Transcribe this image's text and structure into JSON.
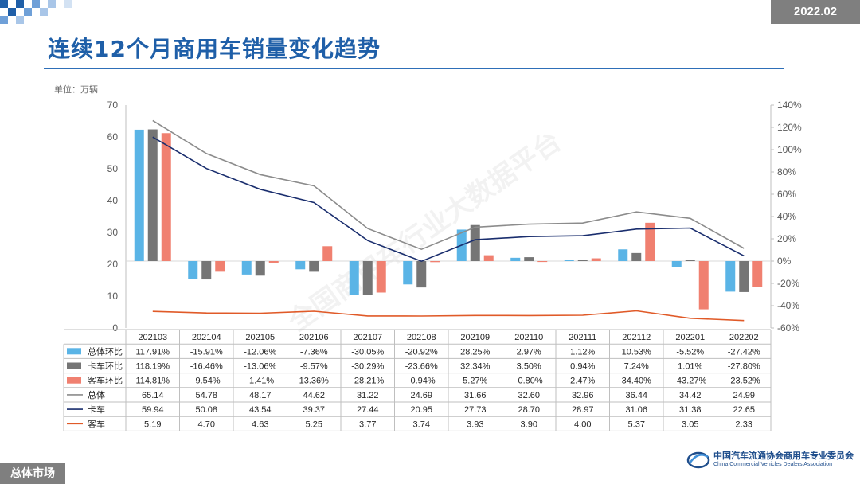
{
  "header": {
    "date": "2022.02",
    "title": "连续12个月商用车销量变化趋势",
    "unit": "单位：万辆"
  },
  "footer": {
    "section": "总体市场",
    "org_cn": "中国汽车流通协会商用车专业委员会",
    "org_en": "China Commercial Vehicles Dealers Association"
  },
  "watermark": "全国商用车行业大数据平台",
  "colors": {
    "total_bar": "#5ab4e6",
    "truck_bar": "#757575",
    "bus_bar": "#f08070",
    "total_line": "#8c8c8c",
    "truck_line": "#1a2e6e",
    "bus_line": "#e05a28"
  },
  "chart_data": {
    "type": "bar",
    "categories": [
      "202103",
      "202104",
      "202105",
      "202106",
      "202107",
      "202108",
      "202109",
      "202110",
      "202111",
      "202112",
      "202201",
      "202202"
    ],
    "left_axis": {
      "min": 0,
      "max": 70,
      "ticks": [
        "0",
        "10",
        "20",
        "30",
        "40",
        "50",
        "60",
        "70"
      ]
    },
    "right_axis": {
      "min": -60,
      "max": 140,
      "ticks": [
        "-60%",
        "-40%",
        "-20%",
        "0%",
        "20%",
        "40%",
        "60%",
        "80%",
        "100%",
        "120%",
        "140%"
      ]
    },
    "series": [
      {
        "name": "总体环比",
        "kind": "bar",
        "axis": "right",
        "color": "#5ab4e6",
        "values": [
          117.91,
          -15.91,
          -12.06,
          -7.36,
          -30.05,
          -20.92,
          28.25,
          2.97,
          1.12,
          10.53,
          -5.52,
          -27.42
        ],
        "labels": [
          "117.91%",
          "-15.91%",
          "-12.06%",
          "-7.36%",
          "-30.05%",
          "-20.92%",
          "28.25%",
          "2.97%",
          "1.12%",
          "10.53%",
          "-5.52%",
          "-27.42%"
        ]
      },
      {
        "name": "卡车环比",
        "kind": "bar",
        "axis": "right",
        "color": "#757575",
        "values": [
          118.19,
          -16.46,
          -13.06,
          -9.57,
          -30.29,
          -23.66,
          32.34,
          3.5,
          0.94,
          7.24,
          1.01,
          -27.8
        ],
        "labels": [
          "118.19%",
          "-16.46%",
          "-13.06%",
          "-9.57%",
          "-30.29%",
          "-23.66%",
          "32.34%",
          "3.50%",
          "0.94%",
          "7.24%",
          "1.01%",
          "-27.80%"
        ]
      },
      {
        "name": "客车环比",
        "kind": "bar",
        "axis": "right",
        "color": "#f08070",
        "values": [
          114.81,
          -9.54,
          -1.41,
          13.36,
          -28.21,
          -0.94,
          5.27,
          -0.8,
          2.47,
          34.4,
          -43.27,
          -23.52
        ],
        "labels": [
          "114.81%",
          "-9.54%",
          "-1.41%",
          "13.36%",
          "-28.21%",
          "-0.94%",
          "5.27%",
          "-0.80%",
          "2.47%",
          "34.40%",
          "-43.27%",
          "-23.52%"
        ]
      },
      {
        "name": "总体",
        "kind": "line",
        "axis": "left",
        "color": "#8c8c8c",
        "values": [
          65.14,
          54.78,
          48.17,
          44.62,
          31.22,
          24.69,
          31.66,
          32.6,
          32.96,
          36.44,
          34.42,
          24.99
        ],
        "labels": [
          "65.14",
          "54.78",
          "48.17",
          "44.62",
          "31.22",
          "24.69",
          "31.66",
          "32.60",
          "32.96",
          "36.44",
          "34.42",
          "24.99"
        ]
      },
      {
        "name": "卡车",
        "kind": "line",
        "axis": "left",
        "color": "#1a2e6e",
        "values": [
          59.94,
          50.08,
          43.54,
          39.37,
          27.44,
          20.95,
          27.73,
          28.7,
          28.97,
          31.06,
          31.38,
          22.65
        ],
        "labels": [
          "59.94",
          "50.08",
          "43.54",
          "39.37",
          "27.44",
          "20.95",
          "27.73",
          "28.70",
          "28.97",
          "31.06",
          "31.38",
          "22.65"
        ]
      },
      {
        "name": "客车",
        "kind": "line",
        "axis": "left",
        "color": "#e05a28",
        "values": [
          5.19,
          4.7,
          4.63,
          5.25,
          3.77,
          3.74,
          3.93,
          3.9,
          4.0,
          5.37,
          3.05,
          2.33
        ],
        "labels": [
          "5.19",
          "4.70",
          "4.63",
          "5.25",
          "3.77",
          "3.74",
          "3.93",
          "3.90",
          "4.00",
          "5.37",
          "3.05",
          "2.33"
        ]
      }
    ]
  }
}
